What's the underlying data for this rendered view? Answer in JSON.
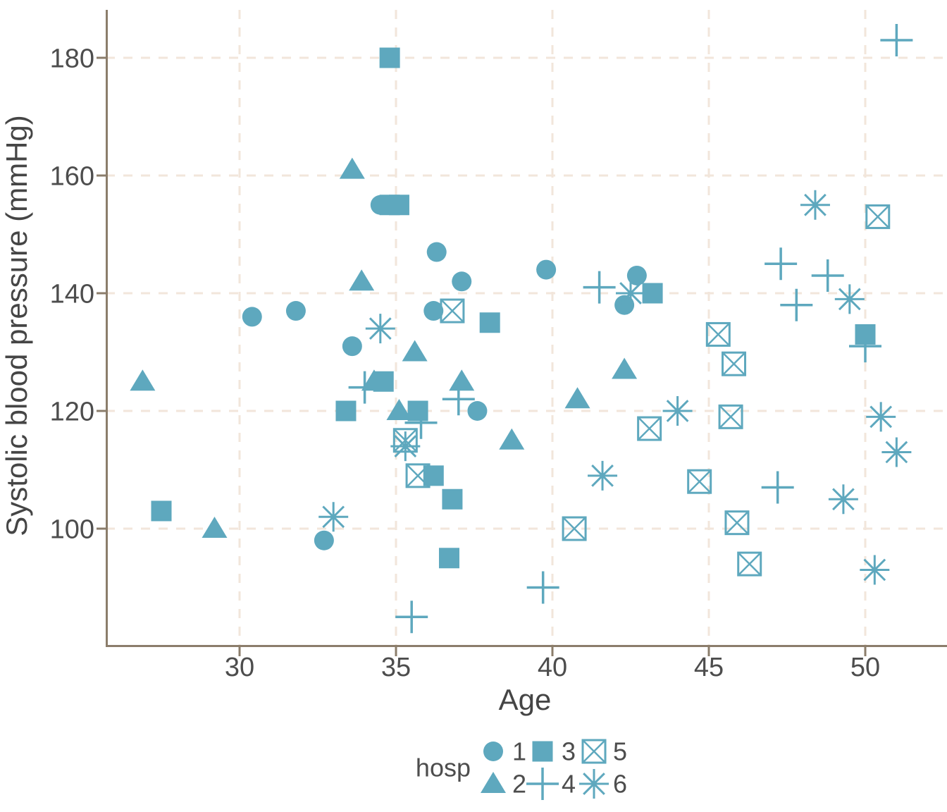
{
  "figure": {
    "x_axis": {
      "title": "Age",
      "tick_labels": [
        "30",
        "35",
        "40",
        "45",
        "50"
      ]
    },
    "y_axis": {
      "title": "Systolic blood pressure (mmHg)",
      "tick_labels": [
        "100",
        "120",
        "140",
        "160",
        "180"
      ]
    },
    "legend": {
      "title": "hosp",
      "entries": [
        {
          "label": "1",
          "marker": "circle"
        },
        {
          "label": "2",
          "marker": "triangle"
        },
        {
          "label": "3",
          "marker": "square"
        },
        {
          "label": "4",
          "marker": "plus"
        },
        {
          "label": "5",
          "marker": "boxed-x"
        },
        {
          "label": "6",
          "marker": "asterisk"
        }
      ]
    },
    "colors": {
      "marker": "#5EA8BE",
      "grid": "#F2E6DB",
      "axis": "#8B7D6B",
      "text": "#4D4D4D"
    }
  },
  "chart_data": {
    "type": "scatter",
    "title": "",
    "xlabel": "Age",
    "ylabel": "Systolic blood pressure (mmHg)",
    "xlim": [
      25.7,
      52.6
    ],
    "ylim": [
      80,
      188
    ],
    "x_ticks": [
      30,
      35,
      40,
      45,
      50
    ],
    "y_ticks": [
      100,
      120,
      140,
      160,
      180
    ],
    "grid": "dashed",
    "legend_position": "bottom",
    "legend_title": "hosp",
    "series": [
      {
        "name": "1",
        "marker": "circle",
        "points": [
          [
            30.4,
            136
          ],
          [
            31.8,
            137
          ],
          [
            32.7,
            98
          ],
          [
            33.6,
            131
          ],
          [
            34.5,
            155
          ],
          [
            36.2,
            137
          ],
          [
            36.3,
            147
          ],
          [
            37.1,
            142
          ],
          [
            37.6,
            120
          ],
          [
            39.8,
            144
          ],
          [
            42.3,
            138
          ],
          [
            42.7,
            143
          ]
        ]
      },
      {
        "name": "2",
        "marker": "triangle",
        "points": [
          [
            26.9,
            125
          ],
          [
            29.2,
            100
          ],
          [
            33.6,
            161
          ],
          [
            33.9,
            142
          ],
          [
            34.3,
            125
          ],
          [
            35.1,
            120
          ],
          [
            35.6,
            130
          ],
          [
            37.1,
            125
          ],
          [
            38.7,
            115
          ],
          [
            40.8,
            122
          ],
          [
            42.3,
            127
          ]
        ]
      },
      {
        "name": "3",
        "marker": "square",
        "points": [
          [
            27.5,
            103
          ],
          [
            33.4,
            120
          ],
          [
            34.6,
            125
          ],
          [
            34.8,
            180
          ],
          [
            34.8,
            155
          ],
          [
            35.1,
            155
          ],
          [
            35.7,
            120
          ],
          [
            36.2,
            109
          ],
          [
            36.7,
            95
          ],
          [
            36.8,
            105
          ],
          [
            38.0,
            135
          ],
          [
            43.2,
            140
          ],
          [
            50.0,
            133
          ]
        ]
      },
      {
        "name": "4",
        "marker": "plus",
        "points": [
          [
            34.0,
            124
          ],
          [
            35.5,
            85
          ],
          [
            35.8,
            118
          ],
          [
            37.0,
            122
          ],
          [
            39.7,
            90
          ],
          [
            41.5,
            141
          ],
          [
            47.2,
            107
          ],
          [
            47.3,
            145
          ],
          [
            47.8,
            138
          ],
          [
            48.8,
            143
          ],
          [
            50.0,
            131
          ],
          [
            51.0,
            183
          ]
        ]
      },
      {
        "name": "5",
        "marker": "boxed-x",
        "points": [
          [
            35.3,
            115
          ],
          [
            35.7,
            109
          ],
          [
            36.8,
            137
          ],
          [
            40.7,
            100
          ],
          [
            43.1,
            117
          ],
          [
            44.7,
            108
          ],
          [
            45.3,
            133
          ],
          [
            45.7,
            119
          ],
          [
            45.8,
            128
          ],
          [
            45.9,
            101
          ],
          [
            46.3,
            94
          ],
          [
            50.4,
            153
          ]
        ]
      },
      {
        "name": "6",
        "marker": "asterisk",
        "points": [
          [
            33.0,
            102
          ],
          [
            34.5,
            134
          ],
          [
            35.3,
            114
          ],
          [
            41.6,
            109
          ],
          [
            42.5,
            140
          ],
          [
            44.0,
            120
          ],
          [
            48.4,
            155
          ],
          [
            49.3,
            105
          ],
          [
            49.5,
            139
          ],
          [
            50.3,
            93
          ],
          [
            50.5,
            119
          ],
          [
            51.0,
            113
          ]
        ]
      }
    ]
  }
}
